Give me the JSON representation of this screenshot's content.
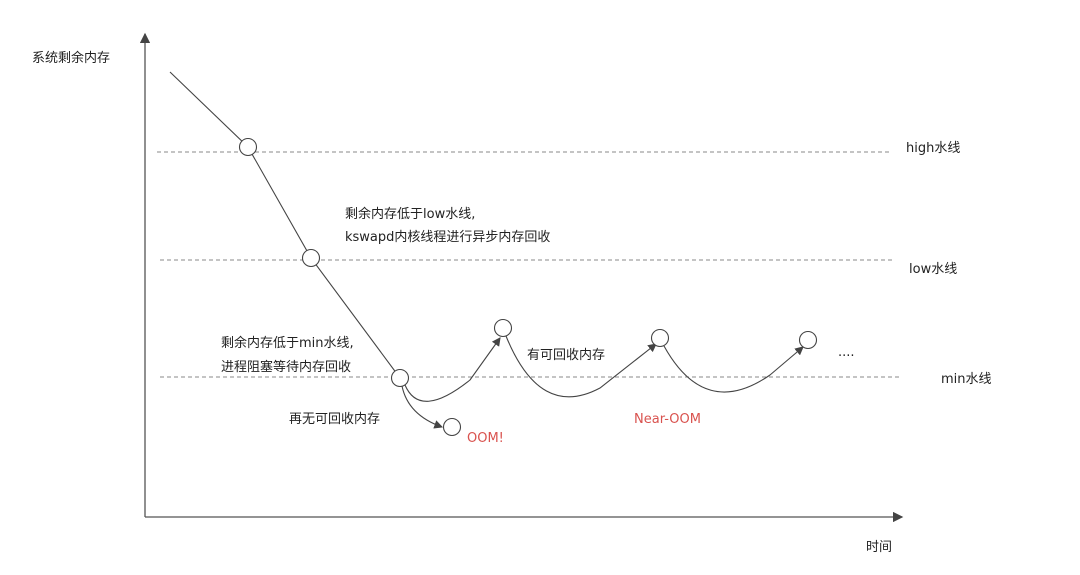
{
  "axes": {
    "y_label": "系统剩余内存",
    "x_label": "时间"
  },
  "watermarks": {
    "high": "high水线",
    "low": "low水线",
    "min": "min水线"
  },
  "annotations": {
    "low_line1": "剩余内存低于low水线,",
    "low_line2": "kswapd内核线程进行异步内存回收",
    "min_line1": "剩余内存低于min水线,",
    "min_line2": "进程阻塞等待内存回收",
    "no_reclaim": "再无可回收内存",
    "oom": "OOM!",
    "reclaimable": "有可回收内存",
    "near_oom": "Near-OOM",
    "ellipsis": "...."
  },
  "colors": {
    "line": "#444444",
    "dashed": "#888888",
    "alert": "#d9534f"
  }
}
